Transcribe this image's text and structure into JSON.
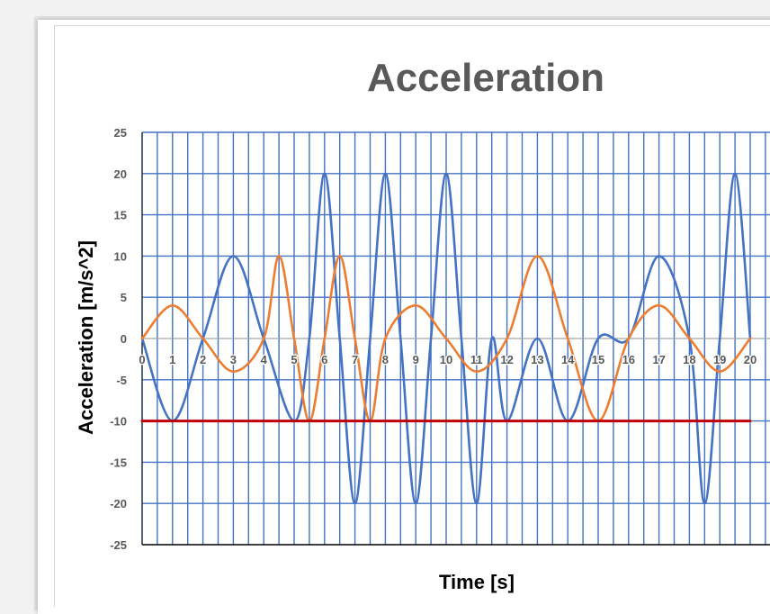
{
  "chart_data": {
    "type": "line",
    "title": "Acceleration",
    "xlabel": "Time [s]",
    "ylabel": "Acceleration [m/s^2]",
    "xlim": [
      0,
      20
    ],
    "ylim": [
      -25,
      25
    ],
    "x_ticks": [
      "0",
      "1",
      "2",
      "3",
      "4",
      "5",
      "6",
      "7",
      "8",
      "9",
      "10",
      "11",
      "12",
      "13",
      "14",
      "15",
      "16",
      "17",
      "18",
      "19",
      "20"
    ],
    "y_ticks": [
      "25",
      "20",
      "15",
      "10",
      "5",
      "0",
      "-5",
      "-10",
      "-15",
      "-20",
      "-25"
    ],
    "grid": true,
    "legend": "none",
    "series": [
      {
        "color": "#4472c4",
        "x": [
          0,
          1,
          2,
          3,
          4,
          5,
          5.5,
          6,
          6.5,
          7,
          7.5,
          8,
          8.5,
          9,
          9.5,
          10,
          10.5,
          11,
          11.5,
          12,
          13,
          14,
          15,
          16,
          17,
          18,
          18.5,
          19,
          19.5,
          20
        ],
        "y": [
          0,
          -10,
          0,
          10,
          0,
          -10,
          0,
          20,
          0,
          -20,
          0,
          20,
          0,
          -20,
          0,
          20,
          0,
          -20,
          0,
          -10,
          0,
          -10,
          0,
          0,
          10,
          0,
          -20,
          0,
          20,
          0
        ]
      },
      {
        "color": "#ed7d31",
        "x": [
          0,
          1,
          2,
          3,
          4,
          4.5,
          5,
          5.5,
          6,
          6.5,
          7,
          7.5,
          8,
          9,
          10,
          11,
          12,
          13,
          14,
          15,
          16,
          17,
          18,
          19,
          20
        ],
        "y": [
          0,
          4,
          0,
          -4,
          0,
          10,
          0,
          -10,
          0,
          10,
          0,
          -10,
          0,
          4,
          0,
          -4,
          0,
          10,
          0,
          -10,
          0,
          4,
          0,
          -4,
          0
        ]
      },
      {
        "color": "#c00000",
        "x": [
          0,
          20
        ],
        "y": [
          -10,
          -10
        ]
      }
    ]
  }
}
